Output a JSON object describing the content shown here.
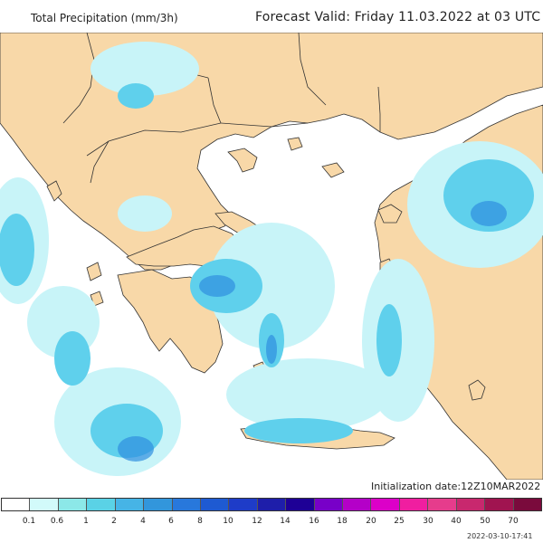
{
  "header": {
    "title_left": "Total Precipitation (mm/3h)",
    "title_right": "Forecast Valid:  Friday 11.03.2022 at 03 UTC"
  },
  "footer": {
    "init_date": "Initialization date:12Z10MAR2022",
    "stamp": "2022-03-10-17:41"
  },
  "legend": {
    "labels": [
      "0.1",
      "0.6",
      "1",
      "2",
      "4",
      "6",
      "8",
      "10",
      "12",
      "14",
      "16",
      "18",
      "20",
      "25",
      "30",
      "40",
      "50",
      "70"
    ],
    "colors": [
      "#ffffff",
      "#d2fafa",
      "#8ce8e8",
      "#5ad2e6",
      "#46b4e6",
      "#3296dc",
      "#2878dc",
      "#1e5ad2",
      "#1e3cc8",
      "#1e1eaa",
      "#1e0096",
      "#7800c8",
      "#b400c8",
      "#dc00c8",
      "#f01ea0",
      "#e63c8c",
      "#c8286e",
      "#a01450",
      "#7a0a3c"
    ]
  },
  "map": {
    "land_color": "#f8d8a8",
    "sea_color": "#ffffff",
    "precip_light": "#c8f4f8",
    "precip_mid": "#5fd0ec",
    "precip_strong": "#2f8fe0"
  }
}
